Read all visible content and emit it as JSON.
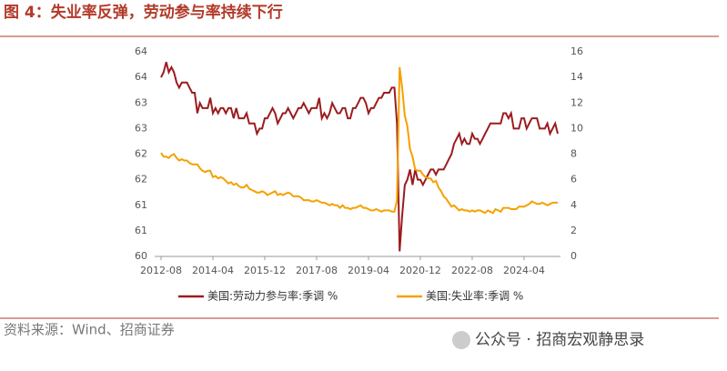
{
  "chart_data": {
    "type": "line",
    "title": "图 4：失业率反弹，劳动参与率持续下行",
    "source": "资料来源：Wind、招商证券",
    "watermark": "公众号 · 招商宏观静思录",
    "x": [
      "2012-08",
      "2012-09",
      "2012-10",
      "2012-11",
      "2012-12",
      "2013-01",
      "2013-02",
      "2013-03",
      "2013-04",
      "2013-05",
      "2013-06",
      "2013-07",
      "2013-08",
      "2013-09",
      "2013-10",
      "2013-11",
      "2013-12",
      "2014-01",
      "2014-02",
      "2014-03",
      "2014-04",
      "2014-05",
      "2014-06",
      "2014-07",
      "2014-08",
      "2014-09",
      "2014-10",
      "2014-11",
      "2014-12",
      "2015-01",
      "2015-02",
      "2015-03",
      "2015-04",
      "2015-05",
      "2015-06",
      "2015-07",
      "2015-08",
      "2015-09",
      "2015-10",
      "2015-11",
      "2015-12",
      "2016-01",
      "2016-02",
      "2016-03",
      "2016-04",
      "2016-05",
      "2016-06",
      "2016-07",
      "2016-08",
      "2016-09",
      "2016-10",
      "2016-11",
      "2016-12",
      "2017-01",
      "2017-02",
      "2017-03",
      "2017-04",
      "2017-05",
      "2017-06",
      "2017-07",
      "2017-08",
      "2017-09",
      "2017-10",
      "2017-11",
      "2017-12",
      "2018-01",
      "2018-02",
      "2018-03",
      "2018-04",
      "2018-05",
      "2018-06",
      "2018-07",
      "2018-08",
      "2018-09",
      "2018-10",
      "2018-11",
      "2018-12",
      "2019-01",
      "2019-02",
      "2019-03",
      "2019-04",
      "2019-05",
      "2019-06",
      "2019-07",
      "2019-08",
      "2019-09",
      "2019-10",
      "2019-11",
      "2019-12",
      "2020-01",
      "2020-02",
      "2020-03",
      "2020-04",
      "2020-05",
      "2020-06",
      "2020-07",
      "2020-08",
      "2020-09",
      "2020-10",
      "2020-11",
      "2020-12",
      "2021-01",
      "2021-02",
      "2021-03",
      "2021-04",
      "2021-05",
      "2021-06",
      "2021-07",
      "2021-08",
      "2021-09",
      "2021-10",
      "2021-11",
      "2021-12",
      "2022-01",
      "2022-02",
      "2022-03",
      "2022-04",
      "2022-05",
      "2022-06",
      "2022-07",
      "2022-08",
      "2022-09",
      "2022-10",
      "2022-11",
      "2022-12",
      "2023-01",
      "2023-02",
      "2023-03",
      "2023-04",
      "2023-05",
      "2023-06",
      "2023-07",
      "2023-08",
      "2023-09",
      "2023-10",
      "2023-11",
      "2023-12",
      "2024-01",
      "2024-02",
      "2024-03",
      "2024-04",
      "2024-05",
      "2024-06",
      "2024-07",
      "2024-08",
      "2024-09",
      "2024-10",
      "2024-11",
      "2024-12",
      "2025-01",
      "2025-02",
      "2025-03",
      "2025-04",
      "2025-05"
    ],
    "xticks": [
      "2012-08",
      "2014-04",
      "2015-12",
      "2017-08",
      "2019-04",
      "2020-12",
      "2022-08",
      "2024-04"
    ],
    "ylim": [
      60,
      64
    ],
    "yticks": [
      60,
      {
        "value": 60.5,
        "label": "61"
      },
      61,
      {
        "value": 61.5,
        "label": "62"
      },
      62,
      {
        "value": 62.5,
        "label": "63"
      },
      63,
      {
        "value": 63.5,
        "label": "64"
      },
      64
    ],
    "y2lim": [
      0,
      16
    ],
    "y2ticks": [
      0,
      2,
      4,
      6,
      8,
      10,
      12,
      14,
      16
    ],
    "legend": "bottom",
    "series": [
      {
        "name": "美国:劳动力参与率:季调 %",
        "color": "#9b1c1f",
        "values": [
          63.5,
          63.6,
          63.8,
          63.6,
          63.7,
          63.6,
          63.4,
          63.3,
          63.4,
          63.4,
          63.4,
          63.3,
          63.2,
          63.2,
          62.8,
          63.0,
          62.9,
          62.9,
          62.9,
          63.1,
          62.8,
          62.9,
          62.8,
          62.9,
          62.9,
          62.8,
          62.9,
          62.9,
          62.7,
          62.9,
          62.7,
          62.7,
          62.7,
          62.8,
          62.6,
          62.6,
          62.6,
          62.4,
          62.5,
          62.5,
          62.7,
          62.7,
          62.8,
          62.9,
          62.8,
          62.6,
          62.7,
          62.8,
          62.8,
          62.9,
          62.8,
          62.7,
          62.8,
          62.9,
          62.9,
          63.0,
          62.9,
          62.8,
          62.9,
          62.9,
          62.9,
          63.1,
          62.7,
          62.8,
          62.7,
          62.8,
          63.0,
          62.9,
          62.8,
          62.8,
          62.9,
          62.9,
          62.7,
          62.7,
          62.9,
          62.9,
          63.0,
          63.1,
          63.1,
          63.0,
          62.8,
          62.9,
          62.9,
          63.0,
          63.1,
          63.1,
          63.2,
          63.2,
          63.2,
          63.3,
          63.3,
          62.6,
          60.1,
          60.8,
          61.4,
          61.5,
          61.7,
          61.4,
          61.7,
          61.5,
          61.5,
          61.4,
          61.5,
          61.6,
          61.7,
          61.7,
          61.6,
          61.7,
          61.7,
          61.7,
          61.8,
          61.9,
          62.0,
          62.2,
          62.3,
          62.4,
          62.2,
          62.3,
          62.2,
          62.2,
          62.4,
          62.3,
          62.3,
          62.2,
          62.3,
          62.4,
          62.5,
          62.6,
          62.6,
          62.6,
          62.6,
          62.6,
          62.8,
          62.8,
          62.7,
          62.8,
          62.5,
          62.5,
          62.5,
          62.7,
          62.7,
          62.5,
          62.6,
          62.7,
          62.7,
          62.7,
          62.5,
          62.5,
          62.5,
          62.6,
          62.4,
          62.5,
          62.6,
          62.4
        ]
      },
      {
        "name": "美国:失业率:季调 %",
        "color": "#f5a100",
        "axis": "y2",
        "values": [
          8.1,
          7.8,
          7.8,
          7.7,
          7.9,
          8.0,
          7.7,
          7.5,
          7.6,
          7.5,
          7.5,
          7.3,
          7.2,
          7.2,
          7.2,
          6.9,
          6.7,
          6.6,
          6.7,
          6.7,
          6.2,
          6.3,
          6.1,
          6.2,
          6.1,
          5.9,
          5.7,
          5.8,
          5.6,
          5.7,
          5.5,
          5.4,
          5.4,
          5.6,
          5.3,
          5.2,
          5.1,
          5.0,
          5.0,
          5.1,
          5.0,
          4.8,
          4.9,
          5.0,
          5.1,
          4.8,
          4.9,
          4.8,
          4.9,
          5.0,
          4.9,
          4.7,
          4.7,
          4.7,
          4.6,
          4.4,
          4.4,
          4.4,
          4.3,
          4.3,
          4.4,
          4.3,
          4.2,
          4.2,
          4.1,
          4.0,
          4.1,
          4.0,
          4.0,
          3.8,
          4.0,
          3.8,
          3.8,
          3.7,
          3.8,
          3.8,
          3.9,
          4.0,
          3.8,
          3.8,
          3.7,
          3.6,
          3.6,
          3.7,
          3.6,
          3.5,
          3.6,
          3.6,
          3.6,
          3.5,
          3.5,
          4.4,
          14.8,
          13.2,
          11.0,
          10.2,
          8.4,
          7.8,
          6.8,
          6.7,
          6.7,
          6.4,
          6.2,
          6.1,
          6.1,
          5.8,
          5.9,
          5.4,
          5.1,
          4.7,
          4.5,
          4.2,
          3.9,
          4.0,
          3.8,
          3.6,
          3.7,
          3.6,
          3.6,
          3.5,
          3.6,
          3.5,
          3.6,
          3.6,
          3.5,
          3.4,
          3.6,
          3.5,
          3.4,
          3.7,
          3.6,
          3.5,
          3.8,
          3.8,
          3.8,
          3.7,
          3.7,
          3.7,
          3.9,
          3.9,
          3.9,
          4.0,
          4.1,
          4.3,
          4.2,
          4.1,
          4.1,
          4.2,
          4.1,
          4.0,
          4.1,
          4.2,
          4.2,
          4.2
        ]
      }
    ]
  }
}
